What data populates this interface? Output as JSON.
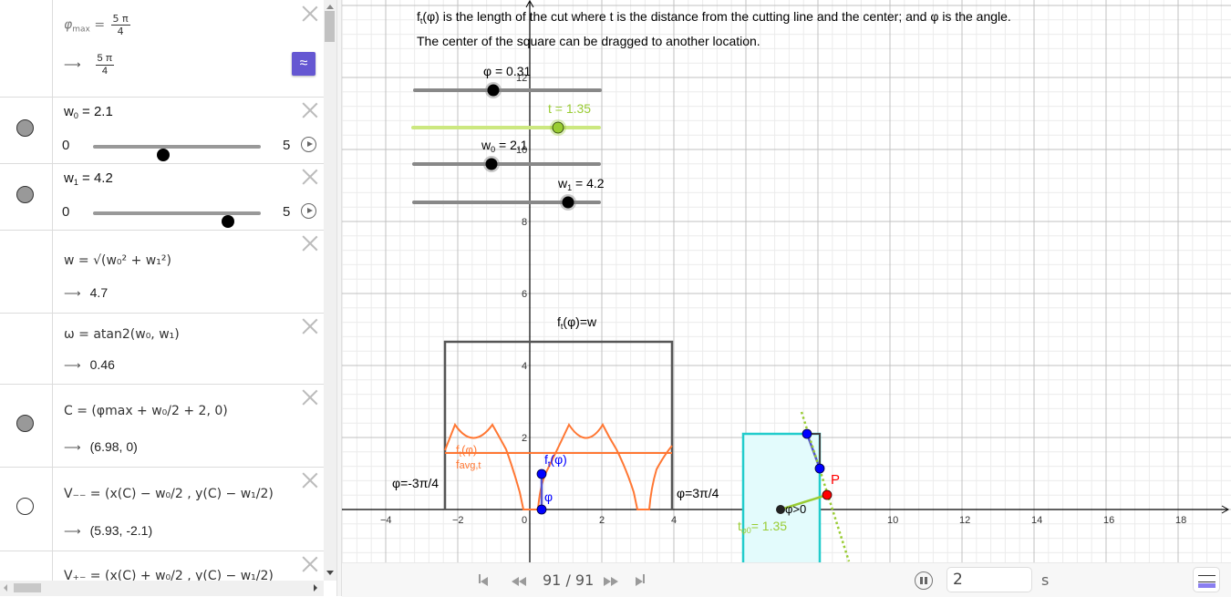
{
  "algebra": {
    "rows": [
      {
        "name": "phi-max",
        "expr_lhs": "φ",
        "expr_sub": "max",
        "expr_eq": "=",
        "expr_num": "5 π",
        "expr_den": "4",
        "output_num": "5 π",
        "output_den": "4",
        "marble": "none"
      },
      {
        "name": "w0",
        "label": "w",
        "sub": "0",
        "eq": "= 2.1",
        "slider_min": "0",
        "slider_max": "5",
        "slider_value": 2.1,
        "marble": "filled"
      },
      {
        "name": "w1",
        "label": "w",
        "sub": "1",
        "eq": "= 4.2",
        "slider_min": "0",
        "slider_max": "5",
        "slider_value": 4.2,
        "marble": "filled"
      },
      {
        "name": "w",
        "expr": "w = √(w₀² + w₁²)",
        "output": "4.7",
        "marble": "none"
      },
      {
        "name": "omega",
        "expr": "ω = atan2(w₀, w₁)",
        "output": "0.46",
        "marble": "none"
      },
      {
        "name": "C",
        "expr": "C = (φmax + w₀/2 + 2, 0)",
        "output": "(6.98, 0)",
        "marble": "filled"
      },
      {
        "name": "V--",
        "expr": "V₋₋ = (x(C) − w₀/2 , y(C) − w₁/2)",
        "output": "(5.93, -2.1)",
        "marble": "empty"
      },
      {
        "name": "V+-",
        "expr": "V₊₋ = (x(C) + w₀/2 , y(C) − w₁/2)",
        "marble": "none"
      }
    ],
    "arrow": "⟶",
    "approx_button": "≈"
  },
  "graphics": {
    "description_line1": "is the length of the cut where t is the distance from the cutting line and the center; and φ is the angle.",
    "description_f": "f",
    "description_t": "t",
    "description_phi": "(φ)",
    "description_line2": "The center of the square can be dragged to another location.",
    "sliders": [
      {
        "name": "phi",
        "label": "φ = 0.31",
        "value": 0.31,
        "color": "#808080"
      },
      {
        "name": "t",
        "label": "t = 1.35",
        "value": 1.35,
        "color": "#99cc33"
      },
      {
        "name": "w0",
        "label": "w",
        "sub": "0",
        "value_text": " = 2.1",
        "value": 2.1,
        "color": "#808080"
      },
      {
        "name": "w1",
        "label": "w",
        "sub": "1",
        "value_text": " = 4.2",
        "value": 4.2,
        "color": "#808080"
      }
    ],
    "labels": {
      "ft_eq_w": "=w",
      "phi_neg": "φ=-3π/4",
      "phi_pos": "φ=3π/4",
      "ft_orange": "(φ)",
      "f_avg": "avg,t",
      "ft_blue": "(φ)",
      "phi_blue": "φ",
      "P": "P",
      "phi_gt0": "φ>0",
      "t_phi0": "= 1.35",
      "t_sub": "φ0"
    },
    "x_ticks": [
      "-4",
      "-2",
      "0",
      "2",
      "4",
      "6",
      "8",
      "10",
      "12",
      "14",
      "16",
      "18"
    ],
    "y_ticks": [
      "2",
      "4",
      "6",
      "8",
      "10",
      "12"
    ],
    "colors": {
      "curve": "#ff7733",
      "square": "#22cccc",
      "square_fill": "#e8fcfd",
      "segment": "#5555cc",
      "point_blue": "#0000ff",
      "point_red": "#ff0000",
      "line_green": "#99cc33"
    }
  },
  "toolbar": {
    "step": "91 / 91",
    "speed": "2",
    "speed_unit": "s"
  }
}
